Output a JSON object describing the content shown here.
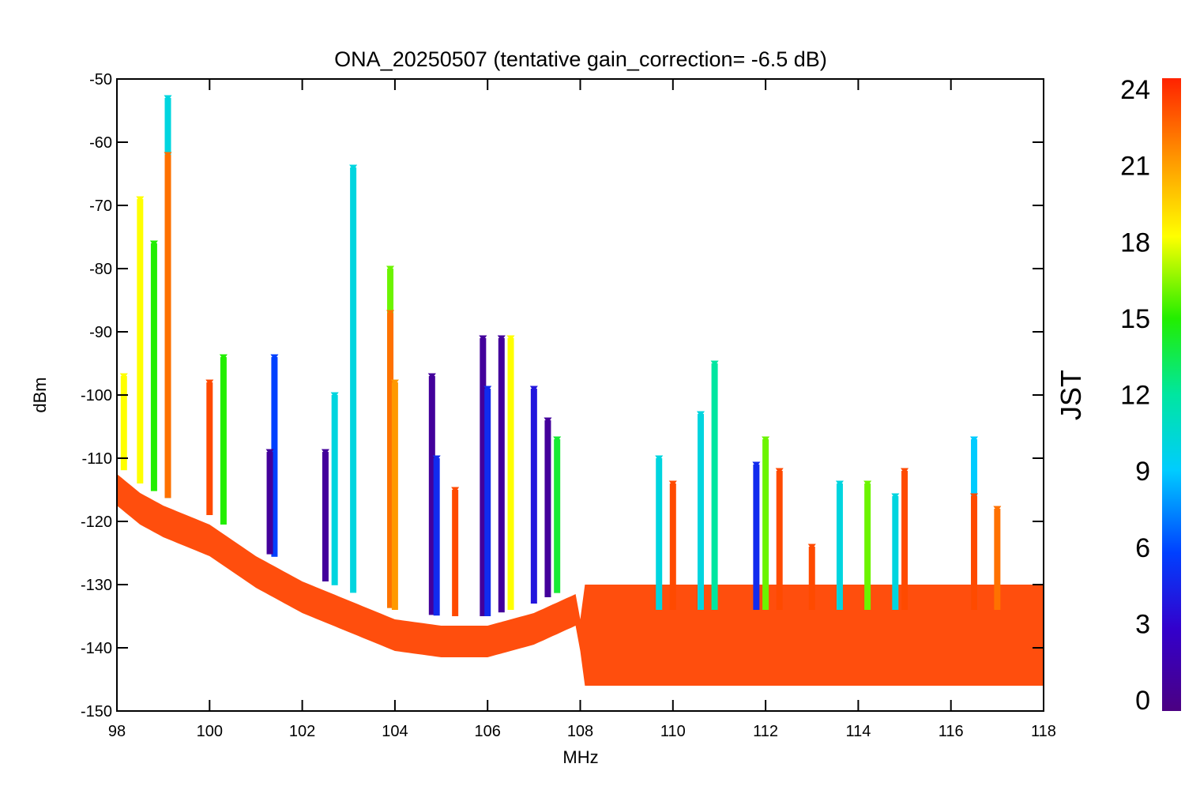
{
  "chart_data": {
    "type": "scatter",
    "title": "ONA_20250507 (tentative gain_correction= -6.5 dB)",
    "xlabel": "MHz",
    "ylabel": "dBm",
    "xlim": [
      98,
      118
    ],
    "ylim": [
      -150,
      -50
    ],
    "x_ticks": [
      "98",
      "100",
      "102",
      "104",
      "106",
      "108",
      "110",
      "112",
      "114",
      "116",
      "118"
    ],
    "y_ticks": [
      "-50",
      "-60",
      "-70",
      "-80",
      "-90",
      "-100",
      "-110",
      "-120",
      "-130",
      "-140",
      "-150"
    ],
    "grid": false,
    "marker": "filled-triangle-down",
    "color_by": {
      "label": "JST",
      "range": [
        0,
        24
      ],
      "ticks": [
        "0",
        "3",
        "6",
        "9",
        "12",
        "15",
        "18",
        "21",
        "24"
      ],
      "colormap": "rainbow (purple-blue-cyan-green-yellow-red)"
    },
    "noise_floor": {
      "x": [
        98.0,
        98.5,
        99.0,
        100.0,
        101.0,
        102.0,
        103.0,
        104.0,
        105.0,
        106.0,
        107.0,
        107.9,
        108.0,
        110.0,
        112.0,
        114.0,
        116.0,
        118.0
      ],
      "y": [
        -115,
        -118,
        -120,
        -123,
        -128,
        -132,
        -135,
        -138,
        -139,
        -139,
        -137,
        -134,
        -138,
        -138,
        -138,
        -138,
        -138,
        -138
      ]
    },
    "series": [
      {
        "x": 98.15,
        "y_max": -97,
        "jst": 18
      },
      {
        "x": 98.5,
        "y_max": -69,
        "jst": 18
      },
      {
        "x": 98.8,
        "y_max": -76,
        "jst": 15
      },
      {
        "x": 99.1,
        "y_max": -53,
        "jst": 10
      },
      {
        "x": 99.1,
        "y_max": -62,
        "jst": 22
      },
      {
        "x": 100.0,
        "y_max": -98,
        "jst": 23
      },
      {
        "x": 100.3,
        "y_max": -94,
        "jst": 15
      },
      {
        "x": 101.4,
        "y_max": -94,
        "jst": 6
      },
      {
        "x": 101.3,
        "y_max": -109,
        "jst": 1
      },
      {
        "x": 102.5,
        "y_max": -109,
        "jst": 1
      },
      {
        "x": 102.7,
        "y_max": -100,
        "jst": 10
      },
      {
        "x": 103.1,
        "y_max": -64,
        "jst": 10
      },
      {
        "x": 103.9,
        "y_max": -80,
        "jst": 16
      },
      {
        "x": 103.9,
        "y_max": -87,
        "jst": 22
      },
      {
        "x": 104.0,
        "y_max": -98,
        "jst": 21
      },
      {
        "x": 104.8,
        "y_max": -97,
        "jst": 1
      },
      {
        "x": 104.9,
        "y_max": -110,
        "jst": 5
      },
      {
        "x": 105.3,
        "y_max": -115,
        "jst": 23
      },
      {
        "x": 105.9,
        "y_max": -91,
        "jst": 1
      },
      {
        "x": 106.0,
        "y_max": -99,
        "jst": 5
      },
      {
        "x": 106.3,
        "y_max": -91,
        "jst": 1
      },
      {
        "x": 106.5,
        "y_max": -91,
        "jst": 18
      },
      {
        "x": 107.0,
        "y_max": -99,
        "jst": 4
      },
      {
        "x": 107.3,
        "y_max": -104,
        "jst": 1
      },
      {
        "x": 107.5,
        "y_max": -107,
        "jst": 14
      },
      {
        "x": 109.7,
        "y_max": -110,
        "jst": 10
      },
      {
        "x": 110.0,
        "y_max": -114,
        "jst": 23
      },
      {
        "x": 110.6,
        "y_max": -103,
        "jst": 10
      },
      {
        "x": 110.9,
        "y_max": -95,
        "jst": 12
      },
      {
        "x": 111.8,
        "y_max": -111,
        "jst": 5
      },
      {
        "x": 112.0,
        "y_max": -107,
        "jst": 16
      },
      {
        "x": 112.3,
        "y_max": -112,
        "jst": 23
      },
      {
        "x": 113.0,
        "y_max": -124,
        "jst": 23
      },
      {
        "x": 113.6,
        "y_max": -114,
        "jst": 10
      },
      {
        "x": 114.2,
        "y_max": -114,
        "jst": 16
      },
      {
        "x": 114.8,
        "y_max": -116,
        "jst": 10
      },
      {
        "x": 115.0,
        "y_max": -112,
        "jst": 23
      },
      {
        "x": 116.5,
        "y_max": -107,
        "jst": 9
      },
      {
        "x": 116.5,
        "y_max": -116,
        "jst": 23
      },
      {
        "x": 117.0,
        "y_max": -118,
        "jst": 22
      }
    ]
  }
}
